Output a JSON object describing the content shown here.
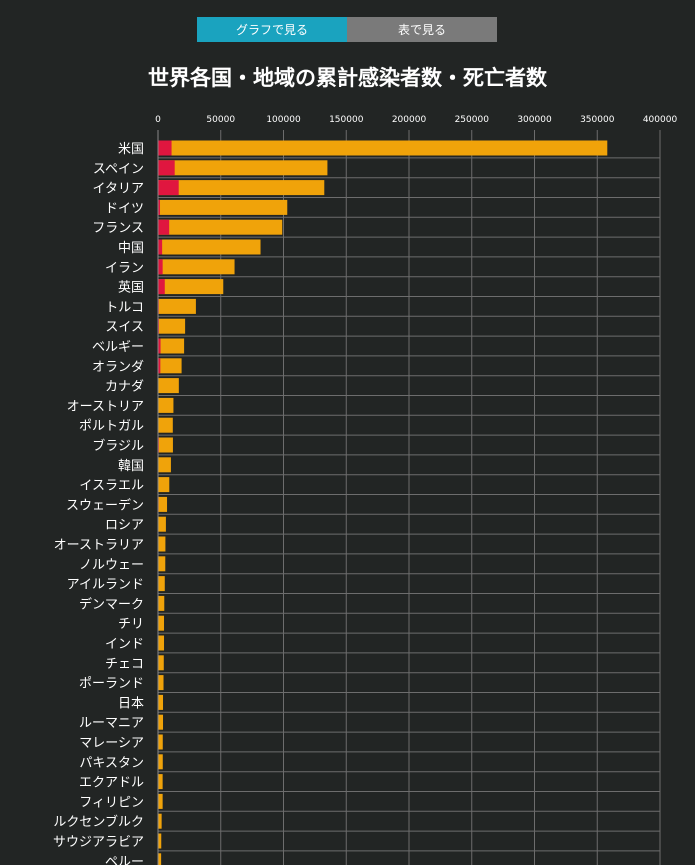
{
  "tabs": [
    {
      "label": "グラフで見る",
      "active": true
    },
    {
      "label": "表で見る",
      "active": false
    }
  ],
  "colors": {
    "background": "#222524",
    "confirmed": "#f0a30a",
    "deaths": "#e0163f",
    "grid": "#6d6d6d",
    "tab_active": "#1aa3bf",
    "tab_inactive": "#7a7a7a"
  },
  "chart_data": {
    "type": "bar",
    "orientation": "horizontal",
    "stacked": true,
    "title": "世界各国・地域の累計感染者数・死亡者数",
    "xlim": [
      0,
      400000
    ],
    "xticks": [
      "0",
      "50000",
      "100000",
      "150000",
      "200000",
      "250000",
      "300000",
      "350000",
      "400000"
    ],
    "grid": true,
    "categories": [
      "米国",
      "スペイン",
      "イタリア",
      "ドイツ",
      "フランス",
      "中国",
      "イラン",
      "英国",
      "トルコ",
      "スイス",
      "ベルギー",
      "オランダ",
      "カナダ",
      "オーストリア",
      "ポルトガル",
      "ブラジル",
      "韓国",
      "イスラエル",
      "スウェーデン",
      "ロシア",
      "オーストラリア",
      "ノルウェー",
      "アイルランド",
      "デンマーク",
      "チリ",
      "インド",
      "チェコ",
      "ポーランド",
      "日本",
      "ルーマニア",
      "マレーシア",
      "パキスタン",
      "エクアドル",
      "フィリピン",
      "ルクセンブルク",
      "サウジアラビア",
      "ペルー"
    ],
    "series": [
      {
        "name": "deaths",
        "values": [
          10800,
          13300,
          16500,
          1600,
          8900,
          3300,
          3700,
          5400,
          650,
          760,
          2030,
          1870,
          380,
          210,
          310,
          670,
          190,
          70,
          480,
          50,
          40,
          80,
          170,
          180,
          40,
          120,
          40,
          110,
          80,
          170,
          60,
          50,
          190,
          180,
          60,
          40,
          120
        ]
      },
      {
        "name": "confirmed",
        "values": [
          358000,
          135000,
          132500,
          103000,
          99000,
          81700,
          61000,
          52000,
          30200,
          21600,
          20800,
          18800,
          16600,
          12300,
          11800,
          11900,
          10300,
          9000,
          7200,
          6300,
          5900,
          5800,
          5400,
          5000,
          4800,
          4800,
          4600,
          4400,
          4000,
          4000,
          3800,
          3800,
          3700,
          3700,
          2900,
          2600,
          2500
        ]
      }
    ]
  }
}
